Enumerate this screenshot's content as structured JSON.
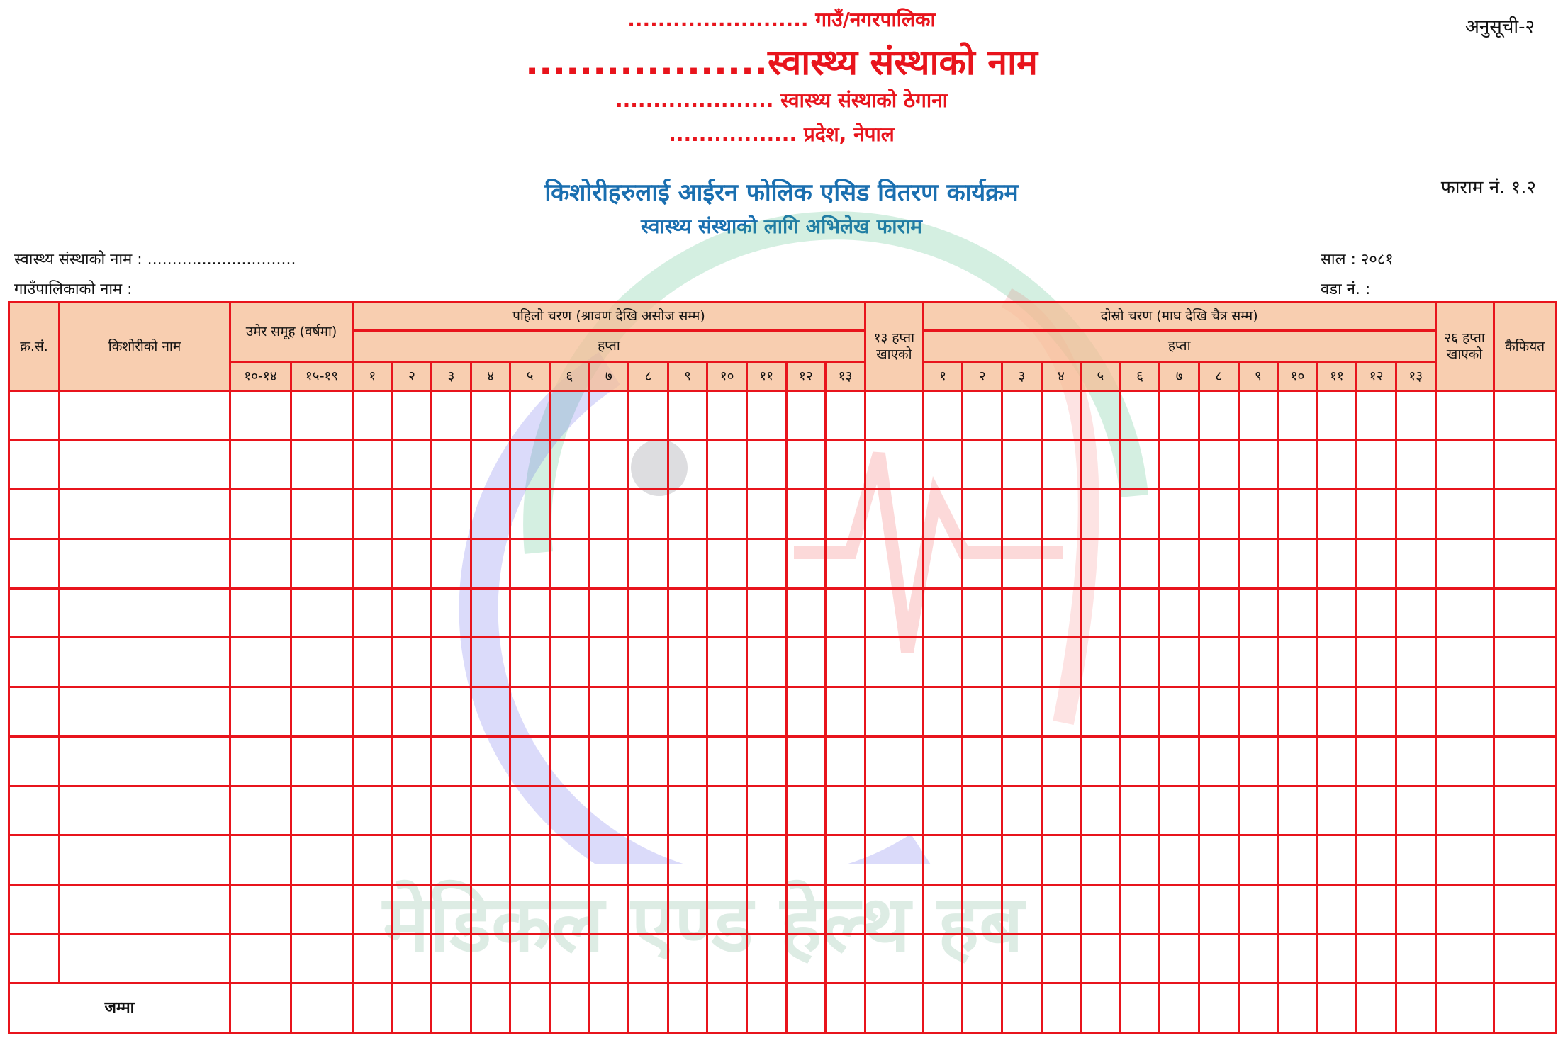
{
  "header": {
    "municipality_line": "........................ गाउँ/नगरपालिका",
    "institution_name_line": "..................स्वास्थ्य संस्थाको नाम",
    "address_line": "..................... स्वास्थ्य संस्थाको ठेगाना",
    "province_line": "................. प्रदेश, नेपाल",
    "annex": "अनुसूची-२",
    "program_title": "किशोरीहरुलाई आईरन फोलिक एसिड वितरण कार्यक्रम",
    "form_subtitle": "स्वास्थ्य संस्थाको लागि अभिलेख फाराम",
    "form_number": "फाराम नं. १.२"
  },
  "info": {
    "institution_name": "स्वास्थ्य संस्थाको नाम : ..............................",
    "municipality_name": "गाउँपालिकाको नाम :",
    "year": "साल : २०८१",
    "ward": "वडा नं. :"
  },
  "table": {
    "sn": "क्र.सं.",
    "name": "किशोरीको नाम",
    "age_group": "उमेर समूह (वर्षमा)",
    "age_cols": [
      "१०-१४",
      "१५-१९"
    ],
    "phase1": "पहिलो चरण (श्रावण देखि असोज सम्म)",
    "phase2": "दोस्रो चरण (माघ देखि चैत्र सम्म)",
    "week": "हप्ता",
    "weeks": [
      "१",
      "२",
      "३",
      "४",
      "५",
      "६",
      "७",
      "८",
      "९",
      "१०",
      "११",
      "१२",
      "१३"
    ],
    "taken13": "१३ हप्ता खाएको",
    "taken26": "२६ हप्ता खाएको",
    "remarks": "कैफियत",
    "total": "जम्मा"
  },
  "watermark": {
    "text": "मेडिकल एण्ड हेल्थ हब"
  },
  "colors": {
    "heading_red": "#e8141c",
    "title_blue": "#1a6fb0",
    "border_red": "#e8141c",
    "header_fill": "#f6be96"
  }
}
